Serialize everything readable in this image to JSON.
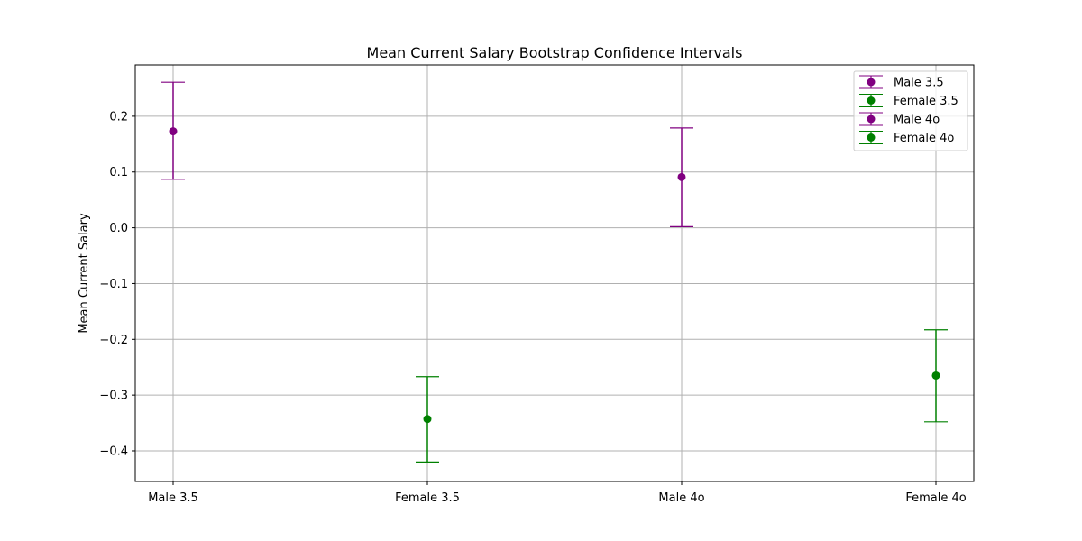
{
  "chart_data": {
    "type": "scatter",
    "title": "Mean Current Salary Bootstrap Confidence Intervals",
    "xlabel": "",
    "ylabel": "Mean Current Salary",
    "categories": [
      "Male 3.5",
      "Female 3.5",
      "Male 4o",
      "Female 4o"
    ],
    "ylim": [
      -0.455,
      0.292
    ],
    "yticks": [
      -0.4,
      -0.3,
      -0.2,
      -0.1,
      0.0,
      0.1,
      0.2
    ],
    "ytick_labels": [
      "−0.4",
      "−0.3",
      "−0.2",
      "−0.1",
      "0.0",
      "0.1",
      "0.2"
    ],
    "grid": true,
    "legend_position": "upper-right",
    "series": [
      {
        "name": "Male 3.5",
        "category": "Male 3.5",
        "mean": 0.173,
        "lower": 0.087,
        "upper": 0.261,
        "color": "#800080"
      },
      {
        "name": "Female 3.5",
        "category": "Female 3.5",
        "mean": -0.343,
        "lower": -0.42,
        "upper": -0.267,
        "color": "#008000"
      },
      {
        "name": "Male 4o",
        "category": "Male 4o",
        "mean": 0.091,
        "lower": 0.002,
        "upper": 0.179,
        "color": "#800080"
      },
      {
        "name": "Female 4o",
        "category": "Female 4o",
        "mean": -0.265,
        "lower": -0.348,
        "upper": -0.183,
        "color": "#008000"
      }
    ]
  }
}
